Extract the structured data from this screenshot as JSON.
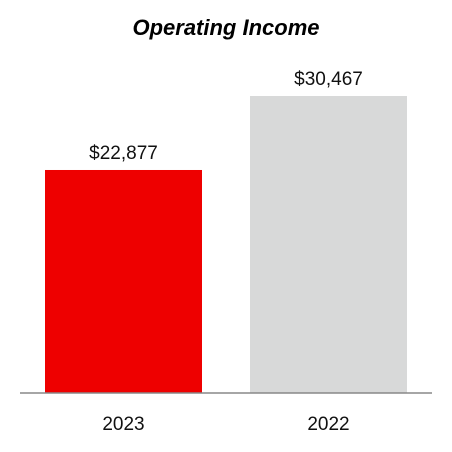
{
  "chart_data": {
    "type": "bar",
    "title": "Operating Income",
    "xlabel": "",
    "ylabel": "",
    "categories": [
      "2023",
      "2022"
    ],
    "values": [
      22877,
      30467
    ],
    "value_labels": [
      "$22,877",
      "$30,467"
    ],
    "colors": [
      "#ee0000",
      "#d8d9d9"
    ],
    "ylim": [
      0,
      30467
    ],
    "grid": false,
    "legend": "none"
  }
}
